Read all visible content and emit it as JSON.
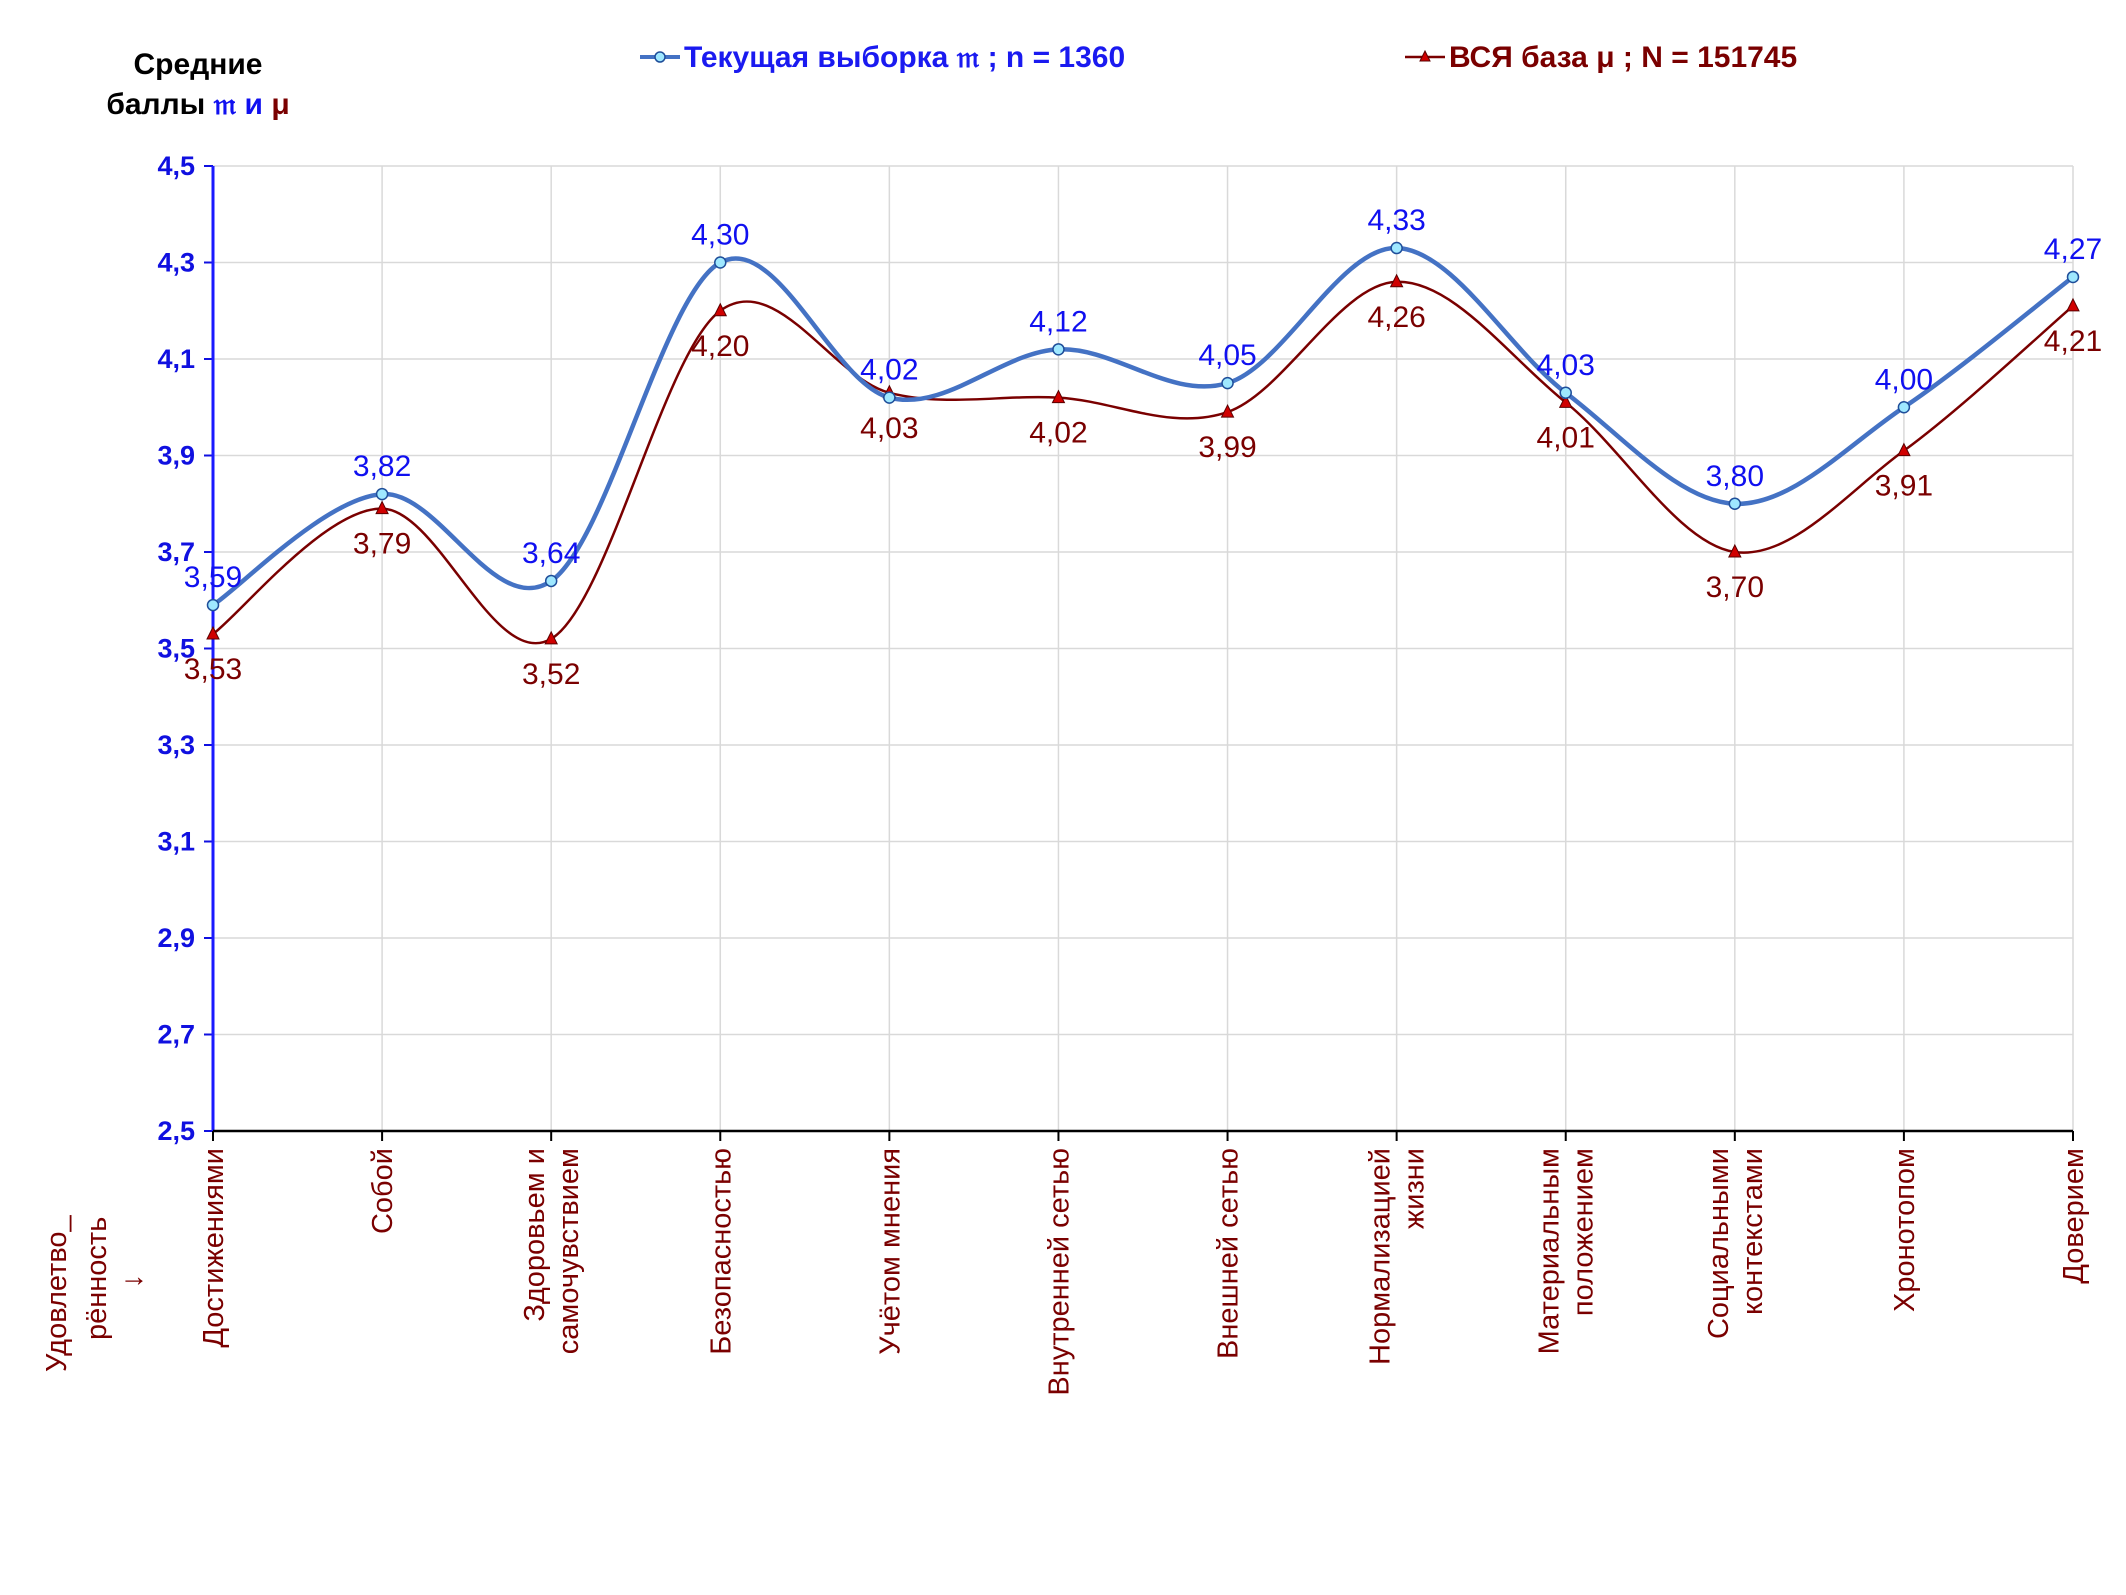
{
  "chart_data": {
    "type": "line",
    "y_title_line1": "Средние",
    "y_title_line2_prefix": "баллы ",
    "y_title_symbol_a": "𝔪",
    "y_title_and": " и ",
    "y_title_symbol_b": "μ",
    "x_title_line1": "Удовлетво_",
    "x_title_line2": "рённость",
    "x_title_arrow": "→",
    "ylim": [
      2.5,
      4.5
    ],
    "yticks": [
      "2,5",
      "2,7",
      "2,9",
      "3,1",
      "3,3",
      "3,5",
      "3,7",
      "3,9",
      "4,1",
      "4,3",
      "4,5"
    ],
    "grid": true,
    "legend_position": "top",
    "categories": [
      [
        "Достижениями"
      ],
      [
        "Собой"
      ],
      [
        "Здоровьем и",
        "самочувствием"
      ],
      [
        "Безопасностью"
      ],
      [
        "Учётом мнения"
      ],
      [
        "Внутренней сетью"
      ],
      [
        "Внешней сетью"
      ],
      [
        "Нормализацией",
        "жизни"
      ],
      [
        "Материальным",
        "положением"
      ],
      [
        "Социальными",
        "контекстами"
      ],
      [
        "Хронотопом"
      ],
      [
        "Доверием"
      ]
    ],
    "series": [
      {
        "name": "Текущая выборка 𝔪 ; n = 1360",
        "color": "#4472c4",
        "label_color": "#1010f0",
        "marker": "circle",
        "values": [
          3.59,
          3.82,
          3.64,
          4.3,
          4.02,
          4.12,
          4.05,
          4.33,
          4.03,
          3.8,
          4.0,
          4.27
        ],
        "labels": [
          "3,59",
          "3,82",
          "3,64",
          "4,30",
          "4,02",
          "4,12",
          "4,05",
          "4,33",
          "4,03",
          "3,80",
          "4,00",
          "4,27"
        ]
      },
      {
        "name": "ВСЯ база μ ; N = 151745",
        "color": "#7a0000",
        "label_color": "#7a0000",
        "marker": "triangle",
        "values": [
          3.53,
          3.79,
          3.52,
          4.2,
          4.03,
          4.02,
          3.99,
          4.26,
          4.01,
          3.7,
          3.91,
          4.21
        ],
        "labels": [
          "3,53",
          "3,79",
          "3,52",
          "4,20",
          "4,03",
          "4,02",
          "3,99",
          "4,26",
          "4,01",
          "3,70",
          "3,91",
          "4,21"
        ]
      }
    ]
  }
}
